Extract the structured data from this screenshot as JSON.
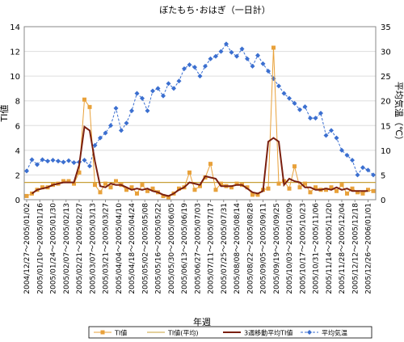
{
  "chart_data": {
    "type": "line",
    "title": "ぼたもち･おはぎ（一日計）",
    "xlabel": "年週",
    "ylabel_left": "TI値",
    "ylabel_right": "平均気温（℃）",
    "ylim_left": [
      0,
      14
    ],
    "ylim_right": [
      0,
      35
    ],
    "yticks_left": [
      "0",
      "2",
      "4",
      "6",
      "8",
      "10",
      "12",
      "14"
    ],
    "yticks_right": [
      "0",
      "5",
      "10",
      "15",
      "20",
      "25",
      "30",
      "35"
    ],
    "grid": true,
    "legend_position": "bottom",
    "colors": {
      "ti": "#E8A13A",
      "ti_avg": "#C8A038",
      "ti_ma": "#7A1F0F",
      "temp": "#3B6FD0",
      "grid": "#DDDDDD",
      "border": "#888888"
    },
    "x_labels": [
      "2004/12/27～2005/01/02",
      "2005/01/10～2005/01/16",
      "2005/01/24～2005/01/30",
      "2005/02/07～2005/02/13",
      "2005/02/21～2005/02/27",
      "2005/03/07～2005/03/13",
      "2005/03/21～2005/03/27",
      "2005/04/04～2005/04/10",
      "2005/04/18～2005/04/24",
      "2005/05/02～2005/05/08",
      "2005/05/16～2005/05/22",
      "2005/05/30～2005/06/05",
      "2005/06/13～2005/06/19",
      "2005/06/27～2005/07/03",
      "2005/07/11～2005/07/17",
      "2005/07/25～2005/07/31",
      "2005/08/08～2005/08/14",
      "2005/08/22～2005/08/28",
      "2005/09/05～2005/09/11",
      "2005/09/19～2005/09/25",
      "2005/10/03～2005/10/09",
      "2005/10/17～2005/10/23",
      "2005/10/31～2005/11/06",
      "2005/11/14～2005/11/20",
      "2005/11/28～2005/12/04",
      "2005/12/12～2005/12/18",
      "2005/12/26～2006/01/01"
    ],
    "series": [
      {
        "name": "TI値",
        "axis": "left",
        "values": [
          0.3,
          0.5,
          0.8,
          1.0,
          1.0,
          1.2,
          1.3,
          1.5,
          1.5,
          1.3,
          2.2,
          8.1,
          7.5,
          1.2,
          0.6,
          1.3,
          1.0,
          1.5,
          1.2,
          0.8,
          1.0,
          0.5,
          1.2,
          0.7,
          0.9,
          0.6,
          0.3,
          0.2,
          0.5,
          0.9,
          1.0,
          2.2,
          0.8,
          1.1,
          1.8,
          2.9,
          0.8,
          1.3,
          1.1,
          1.0,
          1.3,
          1.2,
          1.0,
          0.4,
          0.4,
          0.8,
          0.9,
          12.3,
          1.3,
          1.5,
          0.9,
          2.7,
          1.0,
          1.3,
          0.6,
          1.0,
          0.8,
          0.8,
          1.0,
          0.7,
          1.2,
          0.5,
          0.9,
          0.6,
          0.5,
          0.8,
          0.7
        ]
      },
      {
        "name": "TI値(平均)",
        "axis": "left",
        "values": [
          1.4
        ]
      },
      {
        "name": "3週移動平均TI値",
        "axis": "left",
        "values": [
          null,
          0.5,
          0.8,
          0.9,
          1.0,
          1.2,
          1.3,
          1.4,
          1.4,
          1.4,
          2.8,
          5.9,
          5.6,
          3.1,
          1.1,
          1.0,
          1.3,
          1.2,
          1.2,
          1.0,
          0.8,
          0.9,
          0.8,
          0.9,
          0.7,
          0.6,
          0.4,
          0.3,
          0.5,
          0.8,
          1.0,
          1.4,
          1.3,
          1.2,
          1.9,
          1.8,
          1.7,
          1.1,
          1.1,
          1.1,
          1.2,
          1.2,
          0.9,
          0.6,
          0.5,
          0.7,
          4.7,
          5.0,
          4.7,
          1.2,
          1.7,
          1.5,
          1.4,
          1.0,
          1.0,
          0.8,
          0.8,
          0.9,
          0.8,
          1.0,
          0.8,
          0.9,
          0.7,
          0.7,
          0.7,
          0.7,
          null
        ]
      },
      {
        "name": "平均気温",
        "axis": "right",
        "values": [
          5.8,
          8.1,
          7.1,
          8.1,
          7.8,
          8.0,
          7.8,
          7.6,
          7.9,
          7.5,
          7.6,
          8.0,
          6.8,
          11.0,
          12.5,
          13.5,
          15.0,
          18.5,
          14.0,
          15.5,
          18.0,
          21.5,
          20.5,
          18.0,
          22.0,
          22.5,
          21.0,
          23.5,
          22.5,
          24.0,
          26.5,
          27.3,
          26.8,
          25.0,
          27.0,
          28.5,
          29.0,
          30.0,
          31.5,
          29.8,
          29.0,
          30.5,
          28.5,
          27.0,
          29.2,
          27.5,
          26.0,
          24.5,
          23.0,
          21.5,
          20.5,
          19.5,
          18.2,
          18.8,
          16.5,
          16.5,
          17.5,
          13.0,
          14.0,
          12.5,
          10.0,
          9.0,
          8.0,
          5.0,
          6.5,
          6.0,
          5.0
        ]
      }
    ]
  }
}
